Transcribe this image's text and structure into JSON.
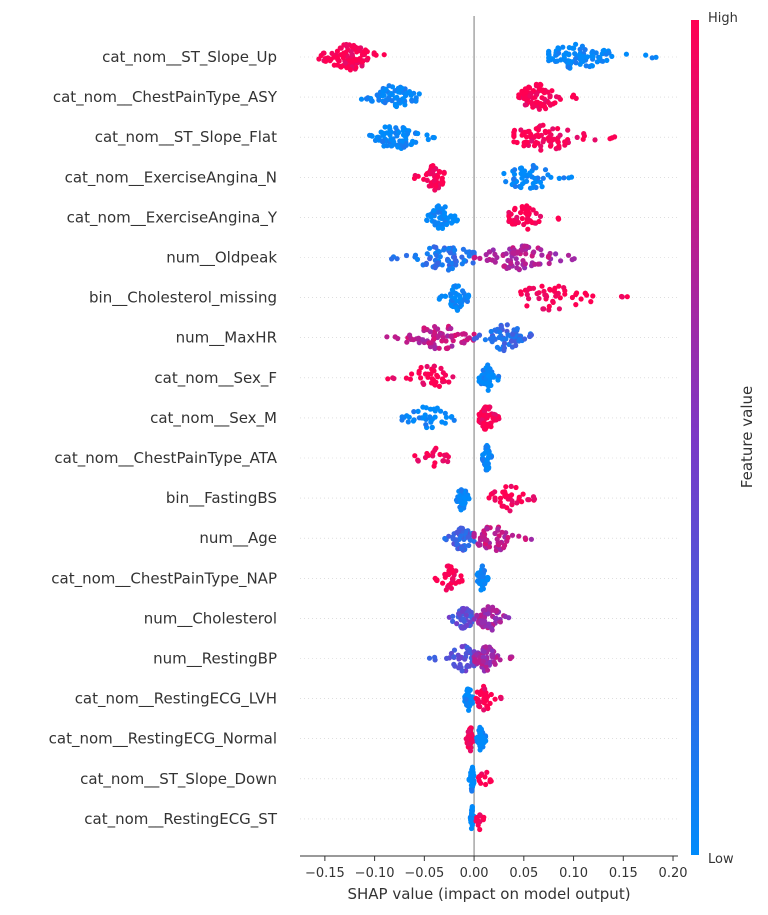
{
  "chart_data": {
    "type": "scatter",
    "subtype": "shap-beeswarm",
    "title": "",
    "xlabel": "SHAP value (impact on model output)",
    "ylabel": "",
    "xlim": [
      -0.175,
      0.205
    ],
    "x_ticks": [
      -0.15,
      -0.1,
      -0.05,
      0.0,
      0.05,
      0.1,
      0.15,
      0.2
    ],
    "x_tick_labels": [
      "−0.15",
      "−0.10",
      "−0.05",
      "0.00",
      "0.05",
      "0.10",
      "0.15",
      "0.20"
    ],
    "grid": false,
    "zero_line": 0.0,
    "colorbar": {
      "label": "Feature value",
      "high_label": "High",
      "low_label": "Low",
      "high_color": "#ff0052",
      "mid_color": "#7b38c6",
      "low_color": "#008bfb"
    },
    "features": [
      {
        "name": "cat_nom__ST_Slope_Up",
        "clusters": [
          {
            "min": -0.16,
            "max": -0.09,
            "center": -0.125,
            "n": 90,
            "value": 1.0
          },
          {
            "min": 0.075,
            "max": 0.185,
            "center": 0.102,
            "n": 90,
            "value": 0.0
          }
        ]
      },
      {
        "name": "cat_nom__ChestPainType_ASY",
        "clusters": [
          {
            "min": -0.115,
            "max": -0.055,
            "center": -0.08,
            "n": 70,
            "value": 0.0
          },
          {
            "min": 0.045,
            "max": 0.105,
            "center": 0.065,
            "n": 75,
            "value": 1.0
          }
        ]
      },
      {
        "name": "cat_nom__ST_Slope_Flat",
        "clusters": [
          {
            "min": -0.105,
            "max": -0.04,
            "center": -0.08,
            "n": 75,
            "value": 0.0
          },
          {
            "min": 0.04,
            "max": 0.15,
            "center": 0.07,
            "n": 80,
            "value": 1.0
          }
        ]
      },
      {
        "name": "cat_nom__ExerciseAngina_N",
        "clusters": [
          {
            "min": -0.06,
            "max": -0.03,
            "center": -0.04,
            "n": 50,
            "value": 1.0
          },
          {
            "min": 0.03,
            "max": 0.1,
            "center": 0.055,
            "n": 55,
            "value": 0.0
          }
        ]
      },
      {
        "name": "cat_nom__ExerciseAngina_Y",
        "clusters": [
          {
            "min": -0.05,
            "max": -0.015,
            "center": -0.032,
            "n": 55,
            "value": 0.0
          },
          {
            "min": 0.035,
            "max": 0.085,
            "center": 0.05,
            "n": 50,
            "value": 1.0
          }
        ]
      },
      {
        "name": "num__Oldpeak",
        "clusters": [
          {
            "min": -0.09,
            "max": 0.0,
            "center": -0.03,
            "n": 70,
            "value": 0.15
          },
          {
            "min": 0.0,
            "max": 0.105,
            "center": 0.045,
            "n": 75,
            "value": 0.7
          }
        ]
      },
      {
        "name": "bin__Cholesterol_missing",
        "clusters": [
          {
            "min": -0.035,
            "max": -0.005,
            "center": -0.018,
            "n": 45,
            "value": 0.0
          },
          {
            "min": 0.045,
            "max": 0.155,
            "center": 0.075,
            "n": 50,
            "value": 1.0
          }
        ]
      },
      {
        "name": "num__MaxHR",
        "clusters": [
          {
            "min": -0.09,
            "max": 0.0,
            "center": -0.035,
            "n": 75,
            "value": 0.75
          },
          {
            "min": 0.0,
            "max": 0.065,
            "center": 0.032,
            "n": 65,
            "value": 0.2
          }
        ]
      },
      {
        "name": "cat_nom__Sex_F",
        "clusters": [
          {
            "min": -0.09,
            "max": -0.02,
            "center": -0.045,
            "n": 40,
            "value": 1.0
          },
          {
            "min": 0.005,
            "max": 0.025,
            "center": 0.013,
            "n": 60,
            "value": 0.0
          }
        ]
      },
      {
        "name": "cat_nom__Sex_M",
        "clusters": [
          {
            "min": -0.075,
            "max": -0.02,
            "center": -0.045,
            "n": 40,
            "value": 0.0
          },
          {
            "min": 0.005,
            "max": 0.025,
            "center": 0.013,
            "n": 60,
            "value": 1.0
          }
        ]
      },
      {
        "name": "cat_nom__ChestPainType_ATA",
        "clusters": [
          {
            "min": -0.06,
            "max": -0.025,
            "center": -0.04,
            "n": 20,
            "value": 1.0
          },
          {
            "min": 0.008,
            "max": 0.018,
            "center": 0.013,
            "n": 40,
            "value": 0.0
          }
        ]
      },
      {
        "name": "bin__FastingBS",
        "clusters": [
          {
            "min": -0.018,
            "max": -0.005,
            "center": -0.012,
            "n": 45,
            "value": 0.0
          },
          {
            "min": 0.015,
            "max": 0.065,
            "center": 0.035,
            "n": 40,
            "value": 1.0
          }
        ]
      },
      {
        "name": "num__Age",
        "clusters": [
          {
            "min": -0.03,
            "max": 0.0,
            "center": -0.012,
            "n": 60,
            "value": 0.25
          },
          {
            "min": 0.0,
            "max": 0.058,
            "center": 0.02,
            "n": 60,
            "value": 0.75
          }
        ]
      },
      {
        "name": "cat_nom__ChestPainType_NAP",
        "clusters": [
          {
            "min": -0.04,
            "max": -0.012,
            "center": -0.025,
            "n": 35,
            "value": 1.0
          },
          {
            "min": 0.003,
            "max": 0.015,
            "center": 0.008,
            "n": 40,
            "value": 0.0
          }
        ]
      },
      {
        "name": "num__Cholesterol",
        "clusters": [
          {
            "min": -0.025,
            "max": 0.0,
            "center": -0.01,
            "n": 50,
            "value": 0.35
          },
          {
            "min": 0.0,
            "max": 0.035,
            "center": 0.015,
            "n": 55,
            "value": 0.65
          }
        ]
      },
      {
        "name": "num__RestingBP",
        "clusters": [
          {
            "min": -0.045,
            "max": 0.0,
            "center": -0.01,
            "n": 50,
            "value": 0.35
          },
          {
            "min": 0.0,
            "max": 0.038,
            "center": 0.012,
            "n": 60,
            "value": 0.65
          }
        ]
      },
      {
        "name": "cat_nom__RestingECG_LVH",
        "clusters": [
          {
            "min": -0.01,
            "max": 0.0,
            "center": -0.005,
            "n": 45,
            "value": 0.0
          },
          {
            "min": 0.002,
            "max": 0.028,
            "center": 0.01,
            "n": 30,
            "value": 1.0
          }
        ]
      },
      {
        "name": "cat_nom__RestingECG_Normal",
        "clusters": [
          {
            "min": -0.008,
            "max": 0.0,
            "center": -0.004,
            "n": 45,
            "value": 1.0
          },
          {
            "min": 0.002,
            "max": 0.012,
            "center": 0.007,
            "n": 30,
            "value": 0.0
          }
        ]
      },
      {
        "name": "cat_nom__ST_Slope_Down",
        "clusters": [
          {
            "min": -0.005,
            "max": 0.0,
            "center": -0.002,
            "n": 40,
            "value": 0.0
          },
          {
            "min": 0.004,
            "max": 0.018,
            "center": 0.01,
            "n": 12,
            "value": 1.0
          }
        ]
      },
      {
        "name": "cat_nom__RestingECG_ST",
        "clusters": [
          {
            "min": -0.004,
            "max": 0.0,
            "center": -0.002,
            "n": 35,
            "value": 0.0
          },
          {
            "min": 0.002,
            "max": 0.01,
            "center": 0.005,
            "n": 12,
            "value": 1.0
          }
        ]
      }
    ]
  }
}
